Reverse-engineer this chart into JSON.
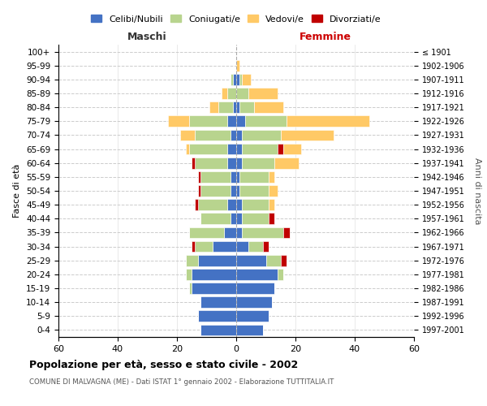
{
  "age_groups": [
    "0-4",
    "5-9",
    "10-14",
    "15-19",
    "20-24",
    "25-29",
    "30-34",
    "35-39",
    "40-44",
    "45-49",
    "50-54",
    "55-59",
    "60-64",
    "65-69",
    "70-74",
    "75-79",
    "80-84",
    "85-89",
    "90-94",
    "95-99",
    "100+"
  ],
  "birth_years": [
    "1997-2001",
    "1992-1996",
    "1987-1991",
    "1982-1986",
    "1977-1981",
    "1972-1976",
    "1967-1971",
    "1962-1966",
    "1957-1961",
    "1952-1956",
    "1947-1951",
    "1942-1946",
    "1937-1941",
    "1932-1936",
    "1927-1931",
    "1922-1926",
    "1917-1921",
    "1912-1916",
    "1907-1911",
    "1902-1906",
    "≤ 1901"
  ],
  "maschi_celibi": [
    12,
    13,
    12,
    15,
    15,
    13,
    8,
    4,
    2,
    3,
    2,
    2,
    3,
    3,
    2,
    3,
    1,
    0,
    1,
    0,
    0
  ],
  "maschi_coniugati": [
    0,
    0,
    0,
    1,
    2,
    4,
    6,
    12,
    10,
    10,
    10,
    10,
    11,
    13,
    12,
    13,
    5,
    3,
    1,
    0,
    0
  ],
  "maschi_vedovi": [
    0,
    0,
    0,
    0,
    0,
    0,
    0,
    0,
    0,
    0,
    0,
    0,
    0,
    1,
    5,
    7,
    3,
    2,
    0,
    0,
    0
  ],
  "maschi_divorziati": [
    0,
    0,
    0,
    0,
    0,
    0,
    1,
    0,
    0,
    1,
    1,
    1,
    1,
    0,
    0,
    0,
    0,
    0,
    0,
    0,
    0
  ],
  "femmine_celibi": [
    9,
    11,
    12,
    13,
    14,
    10,
    4,
    2,
    2,
    2,
    1,
    1,
    2,
    2,
    2,
    3,
    1,
    0,
    1,
    0,
    0
  ],
  "femmine_coniugati": [
    0,
    0,
    0,
    0,
    2,
    5,
    5,
    14,
    9,
    9,
    10,
    10,
    11,
    12,
    13,
    14,
    5,
    4,
    1,
    0,
    0
  ],
  "femmine_vedovi": [
    0,
    0,
    0,
    0,
    0,
    0,
    0,
    0,
    0,
    2,
    3,
    2,
    8,
    6,
    18,
    28,
    10,
    10,
    3,
    1,
    0
  ],
  "femmine_divorziati": [
    0,
    0,
    0,
    0,
    0,
    2,
    2,
    2,
    2,
    0,
    0,
    0,
    0,
    2,
    0,
    0,
    0,
    0,
    0,
    0,
    0
  ],
  "color_celibi": "#4472c4",
  "color_coniugati": "#b8d48e",
  "color_vedovi": "#ffc966",
  "color_divorziati": "#c00000",
  "xlim": 60,
  "title": "Popolazione per età, sesso e stato civile - 2002",
  "subtitle": "COMUNE DI MALVAGNA (ME) - Dati ISTAT 1° gennaio 2002 - Elaborazione TUTTITALIA.IT",
  "ylabel_left": "Fasce di età",
  "ylabel_right": "Anni di nascita",
  "legend_labels": [
    "Celibi/Nubili",
    "Coniugati/e",
    "Vedovi/e",
    "Divorziati/e"
  ]
}
